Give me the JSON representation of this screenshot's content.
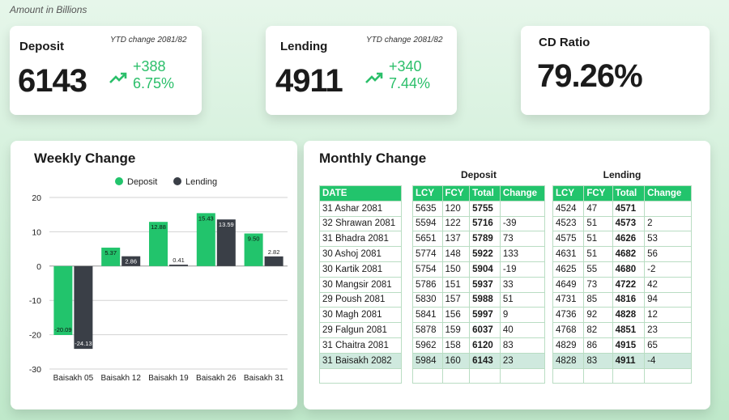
{
  "note": "Amount in Billions",
  "kpis": {
    "deposit": {
      "title": "Deposit",
      "ytd": "YTD change 2081/82",
      "value": "6143",
      "change": "+388",
      "pct": "6.75%"
    },
    "lending": {
      "title": "Lending",
      "ytd": "YTD change 2081/82",
      "value": "4911",
      "change": "+340",
      "pct": "7.44%"
    },
    "cd": {
      "title": "CD Ratio",
      "value": "79.26%"
    }
  },
  "weekly": {
    "title": "Weekly Change"
  },
  "monthly": {
    "title": "Monthly Change",
    "deposit_header": "Deposit",
    "lending_header": "Lending",
    "date_header": "DATE",
    "dep_cols": [
      "LCY",
      "FCY",
      "Total",
      "Change"
    ],
    "len_cols": [
      "LCY",
      "FCY",
      "Total",
      "Change"
    ],
    "rows": [
      {
        "date": "31 Ashar 2081",
        "d": [
          "5635",
          "120",
          "5755",
          ""
        ],
        "l": [
          "4524",
          "47",
          "4571",
          ""
        ]
      },
      {
        "date": "32 Shrawan 2081",
        "d": [
          "5594",
          "122",
          "5716",
          "-39"
        ],
        "l": [
          "4523",
          "51",
          "4573",
          "2"
        ]
      },
      {
        "date": "31 Bhadra 2081",
        "d": [
          "5651",
          "137",
          "5789",
          "73"
        ],
        "l": [
          "4575",
          "51",
          "4626",
          "53"
        ]
      },
      {
        "date": "30 Ashoj 2081",
        "d": [
          "5774",
          "148",
          "5922",
          "133"
        ],
        "l": [
          "4631",
          "51",
          "4682",
          "56"
        ]
      },
      {
        "date": "30 Kartik 2081",
        "d": [
          "5754",
          "150",
          "5904",
          "-19"
        ],
        "l": [
          "4625",
          "55",
          "4680",
          "-2"
        ]
      },
      {
        "date": "30 Mangsir 2081",
        "d": [
          "5786",
          "151",
          "5937",
          "33"
        ],
        "l": [
          "4649",
          "73",
          "4722",
          "42"
        ]
      },
      {
        "date": "29 Poush 2081",
        "d": [
          "5830",
          "157",
          "5988",
          "51"
        ],
        "l": [
          "4731",
          "85",
          "4816",
          "94"
        ]
      },
      {
        "date": "30 Magh 2081",
        "d": [
          "5841",
          "156",
          "5997",
          "9"
        ],
        "l": [
          "4736",
          "92",
          "4828",
          "12"
        ]
      },
      {
        "date": "29 Falgun 2081",
        "d": [
          "5878",
          "159",
          "6037",
          "40"
        ],
        "l": [
          "4768",
          "82",
          "4851",
          "23"
        ]
      },
      {
        "date": "31 Chaitra 2081",
        "d": [
          "5962",
          "158",
          "6120",
          "83"
        ],
        "l": [
          "4829",
          "86",
          "4915",
          "65"
        ]
      },
      {
        "date": "31 Baisakh 2082",
        "d": [
          "5984",
          "160",
          "6143",
          "23"
        ],
        "l": [
          "4828",
          "83",
          "4911",
          "-4"
        ]
      }
    ]
  },
  "chart_data": {
    "type": "bar",
    "categories": [
      "Baisakh 05",
      "Baisakh 12",
      "Baisakh 19",
      "Baisakh 26",
      "Baisakh 31"
    ],
    "series": [
      {
        "name": "Deposit",
        "values": [
          -20.09,
          5.37,
          12.88,
          15.43,
          9.5
        ],
        "labels": [
          "-20.09",
          "5.37",
          "12.88",
          "15.43",
          "9.50"
        ],
        "color": "#22c46c"
      },
      {
        "name": "Lending",
        "values": [
          -24.13,
          2.86,
          0.41,
          13.59,
          2.82
        ],
        "labels": [
          "-24.13",
          "2.86",
          "0.41",
          "13.59",
          "2.82"
        ],
        "color": "#3a3f47"
      }
    ],
    "ylim": [
      -30,
      20
    ],
    "yticks": [
      20,
      10,
      0,
      -10,
      -20,
      -30
    ],
    "grid": true,
    "legend": "top"
  }
}
